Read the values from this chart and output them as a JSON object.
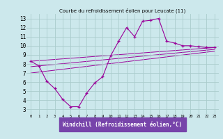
{
  "title": "Courbe du refroidissement éolien pour Leucate (11)",
  "xlabel": "Windchill (Refroidissement éolien,°C)",
  "bg_color": "#cce8ec",
  "grid_color": "#aacccc",
  "line_color": "#990099",
  "xlabel_bg": "#7744aa",
  "xlabel_fg": "#ffffff",
  "xlim": [
    -0.5,
    23.5
  ],
  "ylim": [
    2.5,
    13.5
  ],
  "xticks": [
    0,
    1,
    2,
    3,
    4,
    5,
    6,
    7,
    8,
    9,
    10,
    11,
    12,
    13,
    14,
    15,
    16,
    17,
    18,
    19,
    20,
    21,
    22,
    23
  ],
  "yticks": [
    3,
    4,
    5,
    6,
    7,
    8,
    9,
    10,
    11,
    12,
    13
  ],
  "series": {
    "main": {
      "x": [
        0,
        1,
        2,
        3,
        4,
        5,
        6,
        7,
        8,
        9,
        10,
        11,
        12,
        13,
        14,
        15,
        16,
        17,
        18,
        19,
        20,
        21,
        22,
        23
      ],
      "y": [
        8.3,
        7.8,
        6.1,
        5.3,
        4.1,
        3.3,
        3.3,
        4.8,
        5.9,
        6.6,
        8.9,
        10.5,
        12.0,
        11.0,
        12.7,
        12.8,
        13.0,
        10.5,
        10.3,
        10.0,
        10.0,
        9.9,
        9.8,
        9.8
      ]
    },
    "line1": {
      "x": [
        0,
        23
      ],
      "y": [
        8.3,
        9.8
      ]
    },
    "line2": {
      "x": [
        0,
        23
      ],
      "y": [
        7.7,
        9.6
      ]
    },
    "line3": {
      "x": [
        0,
        23
      ],
      "y": [
        7.0,
        9.4
      ]
    }
  }
}
